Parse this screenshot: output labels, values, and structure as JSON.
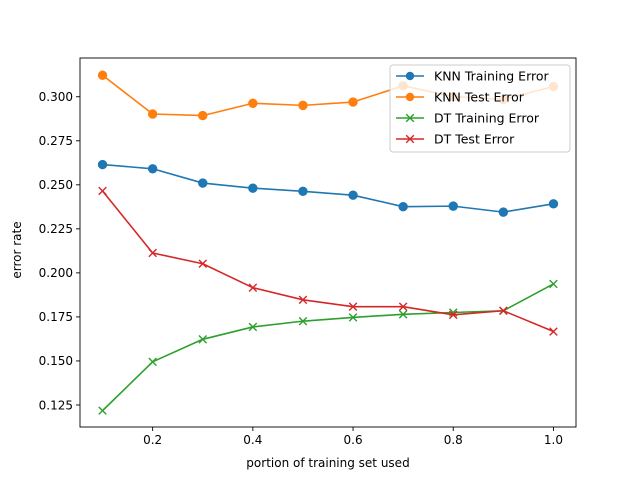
{
  "chart_data": {
    "type": "line",
    "title": "",
    "xlabel": "portion of training set used",
    "ylabel": "error rate",
    "xlim": [
      0.055,
      1.045
    ],
    "ylim": [
      0.1125,
      0.322
    ],
    "x": [
      0.1,
      0.2,
      0.3,
      0.4,
      0.5,
      0.6,
      0.7,
      0.8,
      0.9,
      1.0
    ],
    "x_ticks": [
      0.2,
      0.4,
      0.6,
      0.8,
      1.0
    ],
    "x_tick_labels": [
      "0.2",
      "0.4",
      "0.6",
      "0.8",
      "1.0"
    ],
    "y_ticks": [
      0.125,
      0.15,
      0.175,
      0.2,
      0.225,
      0.25,
      0.275,
      0.3
    ],
    "y_tick_labels": [
      "0.125",
      "0.150",
      "0.175",
      "0.200",
      "0.225",
      "0.250",
      "0.275",
      "0.300"
    ],
    "grid": false,
    "legend_position": "top-right",
    "series": [
      {
        "name": "KNN Training Error",
        "color": "#1f77b4",
        "marker": "circle",
        "values": [
          0.2615,
          0.2591,
          0.251,
          0.2481,
          0.2463,
          0.2441,
          0.2376,
          0.2379,
          0.2345,
          0.2392
        ]
      },
      {
        "name": "KNN Test Error",
        "color": "#ff7f0e",
        "marker": "circle",
        "values": [
          0.3122,
          0.2902,
          0.2893,
          0.2963,
          0.2951,
          0.297,
          0.3062,
          0.3001,
          0.2985,
          0.3058
        ]
      },
      {
        "name": "DT Training Error",
        "color": "#2ca02c",
        "marker": "x",
        "values": [
          0.1218,
          0.1495,
          0.1623,
          0.1693,
          0.1726,
          0.1747,
          0.1765,
          0.1775,
          0.1785,
          0.1937
        ]
      },
      {
        "name": "DT Test Error",
        "color": "#d62728",
        "marker": "x",
        "values": [
          0.2465,
          0.2113,
          0.2052,
          0.1916,
          0.1847,
          0.1808,
          0.1808,
          0.1762,
          0.1785,
          0.1667
        ]
      }
    ]
  }
}
